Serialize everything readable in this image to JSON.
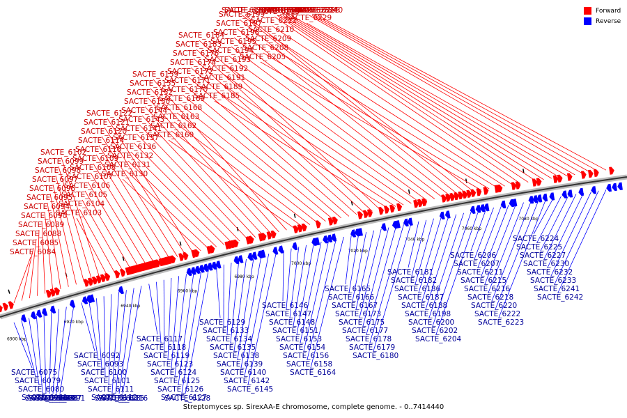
{
  "legend": {
    "forward_label": "Forward",
    "forward_color": "#ff0000",
    "reverse_label": "Reverse",
    "reverse_color": "#0000ff"
  },
  "caption": "Streptomyces sp. SirexAA-E chromosome, complete genome. - 0..7414440",
  "ticks": [
    {
      "kbp": 6900,
      "text": "6900 kbp"
    },
    {
      "kbp": 6920,
      "text": "6920 kbp"
    },
    {
      "kbp": 6940,
      "text": "6940 kbp"
    },
    {
      "kbp": 6960,
      "text": "6960 kbp"
    },
    {
      "kbp": 6980,
      "text": "6980 kbp"
    },
    {
      "kbp": 7000,
      "text": "7000 kbp"
    },
    {
      "kbp": 7020,
      "text": "7020 kbp"
    },
    {
      "kbp": 7040,
      "text": "7040 kbp"
    },
    {
      "kbp": 7060,
      "text": "7060 kbp"
    },
    {
      "kbp": 7080,
      "text": "7080 kbp"
    }
  ],
  "forward_genes": [
    "SACTE_6084",
    "SACTE_6085",
    "SACTE_6088",
    "SACTE_6089",
    "SACTE_6090",
    "SACTE_6094",
    "SACTE_6095",
    "SACTE_6096",
    "SACTE_6097",
    "SACTE_6098",
    "SACTE_6099",
    "SACTE_6102",
    "SACTE_6103",
    "SACTE_6104",
    "SACTE_6105",
    "SACTE_6106",
    "SACTE_6107",
    "SACTE_6108",
    "SACTE_6109",
    "SACTE_6110",
    "SACTE_6114",
    "SACTE_6120",
    "SACTE_6121",
    "SACTE_6122",
    "SACTE_6130",
    "SACTE_6131",
    "SACTE_6132",
    "SACTE_6136",
    "SACTE_6137",
    "SACTE_6141",
    "SACTE_6143",
    "SACTE_6144",
    "SACTE_6150",
    "SACTE_6152",
    "SACTE_6155",
    "SACTE_6159",
    "SACTE_6160",
    "SACTE_6162",
    "SACTE_6163",
    "SACTE_6168",
    "SACTE_6169",
    "SACTE_6170",
    "SACTE_6171",
    "SACTE_6172",
    "SACTE_6174",
    "SACTE_6176",
    "SACTE_6183",
    "SACTE_6184",
    "SACTE_6185",
    "SACTE_6189",
    "SACTE_6191",
    "SACTE_6192",
    "SACTE_6193",
    "SACTE_6194",
    "SACTE_6195",
    "SACTE_6196",
    "SACTE_6197",
    "SACTE_6199",
    "SACTE_6201",
    "SACTE_6203",
    "SACTE_6205",
    "SACTE_6208",
    "SACTE_6209",
    "SACTE_6210",
    "SACTE_6212",
    "SACTE_6213",
    "SACTE_6214",
    "SACTE_6217",
    "SACTE_6219",
    "SACTE_6221",
    "SACTE_6226",
    "SACTE_6228",
    "SACTE_6229",
    "SACTE_6231",
    "SACTE_6234",
    "SACTE_6235",
    "SACTE_6240"
  ],
  "reverse_genes": [
    "SACTE_6075",
    "SACTE_6079",
    "SACTE_6080",
    "SACTE_6081",
    "SACTE_6082",
    "SACTE_6083",
    "SACTE_6086",
    "SACTE_6087",
    "SACTE_6091",
    "SACTE_6092",
    "SACTE_6093",
    "SACTE_6100",
    "SACTE_6101",
    "SACTE_6111",
    "SACTE_6112",
    "SACTE_6113",
    "SACTE_6115",
    "SACTE_6116",
    "SACTE_6117",
    "SACTE_6118",
    "SACTE_6119",
    "SACTE_6123",
    "SACTE_6124",
    "SACTE_6125",
    "SACTE_6126",
    "SACTE_6127",
    "SACTE_6128",
    "SACTE_6129",
    "SACTE_6133",
    "SACTE_6134",
    "SACTE_6135",
    "SACTE_6138",
    "SACTE_6139",
    "SACTE_6140",
    "SACTE_6142",
    "SACTE_6145",
    "SACTE_6146",
    "SACTE_6147",
    "SACTE_6148",
    "SACTE_6151",
    "SACTE_6153",
    "SACTE_6154",
    "SACTE_6156",
    "SACTE_6158",
    "SACTE_6164",
    "SACTE_6165",
    "SACTE_6166",
    "SACTE_6167",
    "SACTE_6173",
    "SACTE_6175",
    "SACTE_6177",
    "SACTE_6178",
    "SACTE_6179",
    "SACTE_6180",
    "SACTE_6181",
    "SACTE_6182",
    "SACTE_6186",
    "SACTE_6187",
    "SACTE_6188",
    "SACTE_6198",
    "SACTE_6200",
    "SACTE_6202",
    "SACTE_6204",
    "SACTE_6206",
    "SACTE_6207",
    "SACTE_6211",
    "SACTE_6215",
    "SACTE_6216",
    "SACTE_6218",
    "SACTE_6220",
    "SACTE_6222",
    "SACTE_6223",
    "SACTE_6224",
    "SACTE_6225",
    "SACTE_6227",
    "SACTE_6230",
    "SACTE_6232",
    "SACTE_6233",
    "SACTE_6241",
    "SACTE_6242"
  ]
}
